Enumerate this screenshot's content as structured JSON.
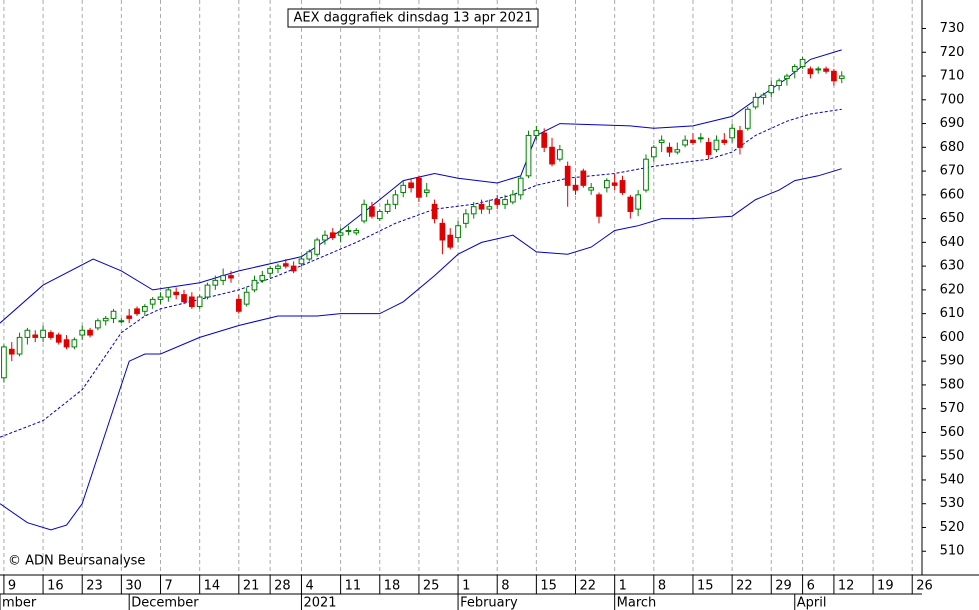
{
  "chart_data": {
    "type": "candlestick",
    "title": "AEX daggrafiek dinsdag 13 apr 2021",
    "annotation": "© ADN Beursanalyse",
    "ylim": [
      500,
      742
    ],
    "yticks": [
      510,
      520,
      530,
      540,
      550,
      560,
      570,
      580,
      590,
      600,
      610,
      620,
      630,
      640,
      650,
      660,
      670,
      680,
      690,
      700,
      710,
      720,
      730
    ],
    "xlim": [
      -0.5,
      117.25
    ],
    "xticks": [
      {
        "value": 0,
        "label": "9"
      },
      {
        "value": 5,
        "label": "16"
      },
      {
        "value": 10,
        "label": "23"
      },
      {
        "value": 15,
        "label": "30"
      },
      {
        "value": 20,
        "label": "7"
      },
      {
        "value": 25,
        "label": "14"
      },
      {
        "value": 30,
        "label": "21"
      },
      {
        "value": 34,
        "label": "28"
      },
      {
        "value": 38,
        "label": "4"
      },
      {
        "value": 43,
        "label": "11"
      },
      {
        "value": 48,
        "label": "18"
      },
      {
        "value": 53,
        "label": "25"
      },
      {
        "value": 58,
        "label": "1"
      },
      {
        "value": 63,
        "label": "8"
      },
      {
        "value": 68,
        "label": "15"
      },
      {
        "value": 73,
        "label": "22"
      },
      {
        "value": 78,
        "label": "1"
      },
      {
        "value": 83,
        "label": "8"
      },
      {
        "value": 88,
        "label": "15"
      },
      {
        "value": 93,
        "label": "22"
      },
      {
        "value": 98,
        "label": "29"
      },
      {
        "value": 102,
        "label": "6"
      },
      {
        "value": 106,
        "label": "12"
      },
      {
        "value": 111,
        "label": "19"
      },
      {
        "value": 116,
        "label": "26"
      }
    ],
    "months": [
      {
        "value": -0.5,
        "label": "mber"
      },
      {
        "value": 16,
        "label": "December"
      },
      {
        "value": 38,
        "label": "2021"
      },
      {
        "value": 58,
        "label": "February"
      },
      {
        "value": 78,
        "label": "March"
      },
      {
        "value": 101,
        "label": "April"
      }
    ],
    "grid": true,
    "up_color": "#008000",
    "down_color": "#e00000",
    "open": [
      583,
      595,
      593,
      600,
      601,
      600,
      602,
      601,
      599,
      596,
      601,
      603,
      604,
      607,
      608,
      607,
      609,
      612,
      611,
      614,
      616,
      617,
      619,
      618,
      617,
      613,
      617,
      622,
      624,
      626,
      616,
      614,
      620,
      624,
      627,
      629,
      631,
      630,
      631,
      633,
      635,
      641,
      644,
      643,
      645,
      644,
      649,
      655,
      650,
      653,
      656,
      661,
      665,
      667,
      661,
      656,
      648,
      643,
      642,
      648,
      652,
      656,
      654,
      658,
      656,
      657,
      660,
      668,
      685,
      686,
      680,
      675,
      672,
      664,
      670,
      662,
      660,
      663,
      665,
      666,
      659,
      654,
      662,
      676,
      682,
      680,
      678,
      681,
      683,
      684,
      682,
      679,
      683,
      684,
      687,
      688,
      697,
      701,
      703,
      706,
      709,
      712,
      714,
      713,
      713,
      713,
      712,
      709
    ],
    "high": [
      597,
      598,
      602,
      604,
      603,
      605,
      603,
      602,
      601,
      600,
      605,
      604,
      608,
      609,
      612,
      608,
      612,
      613,
      614,
      617,
      619,
      621,
      621,
      620,
      619,
      618,
      623,
      626,
      629,
      628,
      618,
      621,
      626,
      628,
      630,
      631,
      633,
      632,
      634,
      637,
      642,
      645,
      646,
      646,
      647,
      646,
      658,
      657,
      654,
      658,
      662,
      666,
      667,
      668,
      665,
      658,
      650,
      646,
      649,
      654,
      657,
      658,
      658,
      660,
      660,
      662,
      668,
      687,
      689,
      688,
      684,
      681,
      674,
      667,
      671,
      665,
      661,
      667,
      669,
      668,
      660,
      662,
      677,
      681,
      685,
      682,
      682,
      685,
      686,
      686,
      684,
      685,
      686,
      690,
      689,
      697,
      703,
      703,
      708,
      709,
      711,
      715,
      718,
      714,
      714,
      714,
      713,
      712
    ],
    "low": [
      581,
      590,
      592,
      597,
      598,
      598,
      599,
      597,
      595,
      595,
      599,
      600,
      603,
      605,
      606,
      606,
      606,
      609,
      609,
      612,
      614,
      615,
      616,
      614,
      612,
      612,
      616,
      620,
      622,
      623,
      610,
      613,
      619,
      623,
      625,
      627,
      629,
      627,
      630,
      632,
      634,
      639,
      641,
      640,
      643,
      643,
      648,
      650,
      649,
      652,
      654,
      659,
      661,
      657,
      659,
      648,
      635,
      637,
      640,
      646,
      650,
      652,
      652,
      654,
      654,
      656,
      658,
      667,
      683,
      678,
      672,
      674,
      655,
      660,
      663,
      660,
      648,
      661,
      662,
      660,
      650,
      651,
      661,
      674,
      678,
      676,
      677,
      680,
      681,
      682,
      675,
      678,
      681,
      682,
      677,
      687,
      696,
      698,
      701,
      704,
      706,
      709,
      713,
      709,
      711,
      711,
      706,
      707
    ],
    "close": [
      596,
      593,
      600,
      603,
      600,
      603,
      600,
      598,
      596,
      599,
      603,
      601,
      607,
      608,
      611,
      607,
      608,
      610,
      613,
      616,
      617,
      620,
      618,
      615,
      613,
      617,
      622,
      624,
      626,
      625,
      611,
      619,
      624,
      626,
      629,
      630,
      630,
      628,
      633,
      636,
      641,
      643,
      642,
      644,
      645,
      645,
      656,
      651,
      653,
      656,
      660,
      664,
      663,
      659,
      662,
      650,
      641,
      638,
      647,
      652,
      655,
      654,
      655,
      656,
      658,
      660,
      667,
      685,
      687,
      680,
      673,
      679,
      664,
      662,
      664,
      663,
      651,
      666,
      664,
      661,
      653,
      660,
      675,
      680,
      683,
      678,
      679,
      683,
      682,
      684,
      677,
      683,
      682,
      688,
      680,
      696,
      701,
      702,
      706,
      708,
      710,
      714,
      717,
      711,
      713,
      712,
      708,
      710
    ],
    "series": [
      {
        "name": "upper",
        "color": "#0000cc",
        "dash": false,
        "x": [
          -0.5,
          5,
          11.4,
          15,
          19,
          25,
          30,
          38,
          43,
          48,
          51,
          55,
          58,
          63,
          66,
          68,
          71,
          80,
          83,
          88,
          93,
          96,
          100,
          103,
          107
        ],
        "values": [
          606,
          622,
          633,
          628,
          620,
          623,
          628,
          634,
          645,
          658,
          666,
          669,
          667,
          665,
          668,
          685,
          690,
          689,
          688,
          689,
          693,
          700,
          709,
          717,
          721
        ]
      },
      {
        "name": "middle",
        "color": "#0000cc",
        "dash": true,
        "x": [
          -0.5,
          5,
          10,
          15,
          18,
          20,
          25,
          30,
          35,
          40,
          45,
          50,
          55,
          60,
          65,
          68,
          72,
          78,
          83,
          90,
          93,
          96,
          100,
          103,
          107
        ],
        "values": [
          558,
          565,
          578,
          602,
          609,
          612,
          616,
          620,
          626,
          633,
          640,
          648,
          654,
          656,
          660,
          664,
          667,
          669,
          672,
          675,
          678,
          685,
          691,
          694,
          696
        ]
      },
      {
        "name": "lower",
        "color": "#0000cc",
        "dash": false,
        "x": [
          -0.5,
          3,
          6,
          8,
          10,
          13,
          16,
          18,
          20,
          25,
          30,
          35,
          40,
          43,
          48,
          51,
          55,
          58,
          61,
          65,
          68,
          72,
          75,
          78,
          81,
          84,
          88,
          93,
          96,
          99,
          101,
          104,
          107
        ],
        "values": [
          530,
          522,
          519,
          521,
          530,
          560,
          590,
          593,
          593,
          600,
          605,
          609,
          609,
          610,
          610,
          615,
          626,
          635,
          640,
          643,
          636,
          635,
          638,
          645,
          647,
          650,
          650,
          651,
          658,
          662,
          666,
          668,
          671
        ]
      }
    ]
  }
}
